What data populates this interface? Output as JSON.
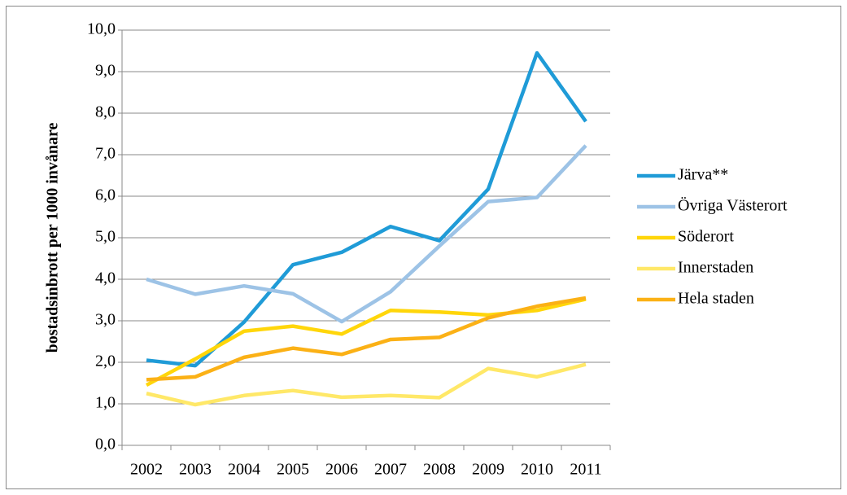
{
  "chart_data": {
    "type": "line",
    "y_label": "bostadsinbrott per 1000 invånare",
    "categories": [
      "2002",
      "2003",
      "2004",
      "2005",
      "2006",
      "2007",
      "2008",
      "2009",
      "2010",
      "2011"
    ],
    "series": [
      {
        "name": "Järva**",
        "color": "#1f9bd7",
        "values": [
          2.05,
          1.92,
          2.97,
          4.35,
          4.65,
          5.27,
          4.93,
          6.17,
          9.45,
          7.8
        ]
      },
      {
        "name": "Övriga Västerort",
        "color": "#9dc3e6",
        "values": [
          4.0,
          3.64,
          3.84,
          3.65,
          2.98,
          3.7,
          4.8,
          5.87,
          5.97,
          7.22
        ]
      },
      {
        "name": "Söderort",
        "color": "#ffd60a",
        "values": [
          1.45,
          2.08,
          2.75,
          2.87,
          2.68,
          3.25,
          3.21,
          3.14,
          3.25,
          3.52
        ]
      },
      {
        "name": "Innerstaden",
        "color": "#ffe868",
        "values": [
          1.25,
          0.98,
          1.2,
          1.32,
          1.16,
          1.2,
          1.15,
          1.85,
          1.65,
          1.95
        ]
      },
      {
        "name": "Hela staden",
        "color": "#fbb116",
        "values": [
          1.58,
          1.65,
          2.12,
          2.34,
          2.19,
          2.55,
          2.6,
          3.07,
          3.35,
          3.55
        ]
      }
    ],
    "ylim": [
      0,
      10
    ],
    "yticks": [
      {
        "value": 0,
        "label": "0,0"
      },
      {
        "value": 1,
        "label": "1,0"
      },
      {
        "value": 2,
        "label": "2,0"
      },
      {
        "value": 3,
        "label": "3,0"
      },
      {
        "value": 4,
        "label": "4,0"
      },
      {
        "value": 5,
        "label": "5,0"
      },
      {
        "value": 6,
        "label": "6,0"
      },
      {
        "value": 7,
        "label": "7,0"
      },
      {
        "value": 8,
        "label": "8,0"
      },
      {
        "value": 9,
        "label": "9,0"
      },
      {
        "value": 10,
        "label": "10,0"
      }
    ],
    "grid": true,
    "legend": "right"
  }
}
